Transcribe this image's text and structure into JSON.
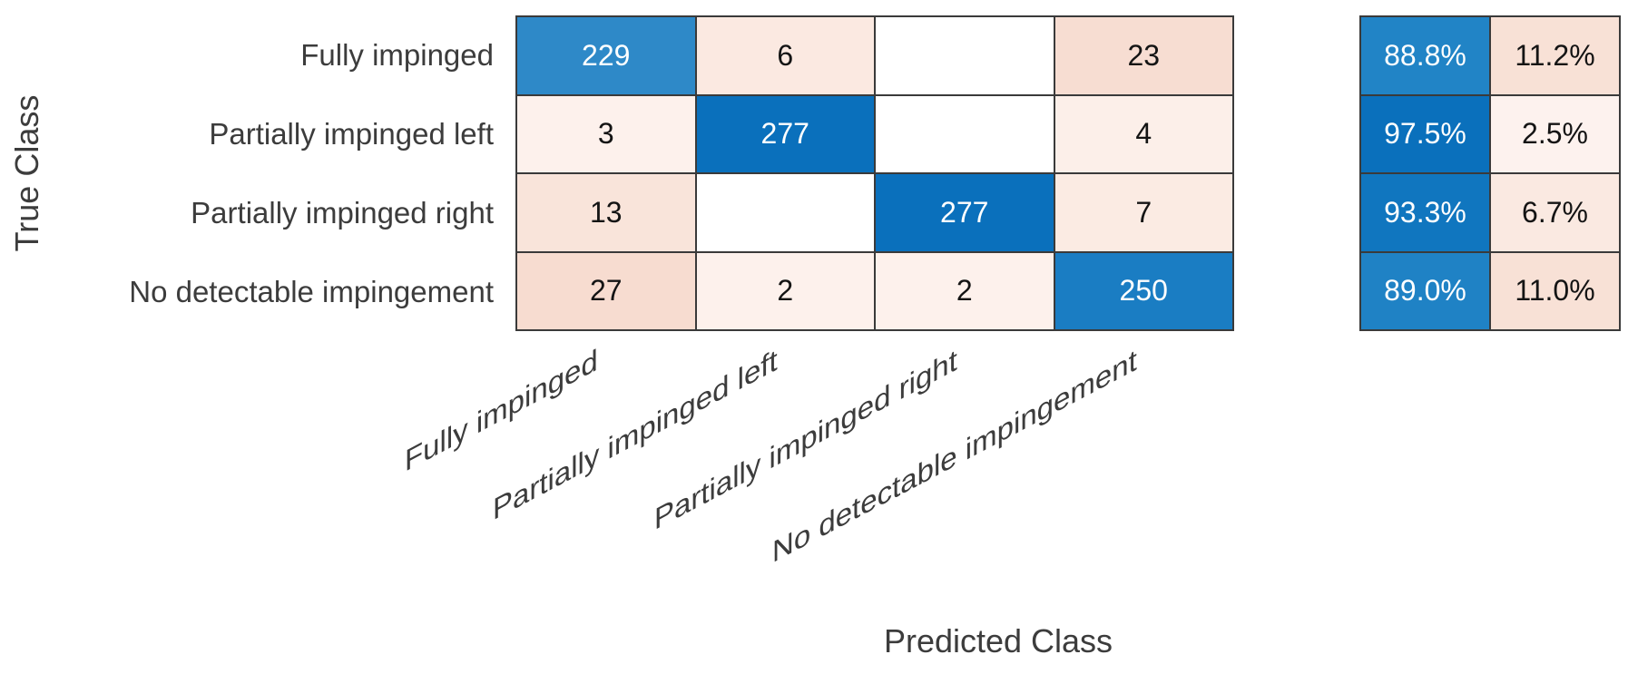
{
  "chart_data": {
    "type": "heatmap",
    "subtype": "confusion-matrix",
    "title": "",
    "xlabel": "Predicted Class",
    "ylabel": "True Class",
    "classes": [
      "Fully impinged",
      "Partially impinged left",
      "Partially impinged right",
      "No detectable impingement"
    ],
    "matrix": [
      [
        229,
        6,
        null,
        23
      ],
      [
        3,
        277,
        null,
        4
      ],
      [
        13,
        null,
        277,
        7
      ],
      [
        27,
        2,
        2,
        250
      ]
    ],
    "row_summary_percent": [
      [
        "88.8%",
        "11.2%"
      ],
      [
        "97.5%",
        "2.5%"
      ],
      [
        "93.3%",
        "6.7%"
      ],
      [
        "89.0%",
        "11.0%"
      ]
    ],
    "cells": [
      [
        {
          "value": "229",
          "bg": "#2e89c8",
          "fg": "#ffffff"
        },
        {
          "value": "6",
          "bg": "#fbe9e1",
          "fg": "#141414"
        },
        {
          "value": "",
          "bg": "#ffffff",
          "fg": "#141414"
        },
        {
          "value": "23",
          "bg": "#f7ddd2",
          "fg": "#141414"
        }
      ],
      [
        {
          "value": "3",
          "bg": "#fdf1ec",
          "fg": "#141414"
        },
        {
          "value": "277",
          "bg": "#0a70bc",
          "fg": "#ffffff"
        },
        {
          "value": "",
          "bg": "#ffffff",
          "fg": "#141414"
        },
        {
          "value": "4",
          "bg": "#fcefe9",
          "fg": "#141414"
        }
      ],
      [
        {
          "value": "13",
          "bg": "#f9e4da",
          "fg": "#141414"
        },
        {
          "value": "",
          "bg": "#ffffff",
          "fg": "#141414"
        },
        {
          "value": "277",
          "bg": "#0a70bc",
          "fg": "#ffffff"
        },
        {
          "value": "7",
          "bg": "#fbebe3",
          "fg": "#141414"
        }
      ],
      [
        {
          "value": "27",
          "bg": "#f7dcd0",
          "fg": "#141414"
        },
        {
          "value": "2",
          "bg": "#fdf1ec",
          "fg": "#141414"
        },
        {
          "value": "2",
          "bg": "#fdf1ec",
          "fg": "#141414"
        },
        {
          "value": "250",
          "bg": "#1a7dc3",
          "fg": "#ffffff"
        }
      ]
    ],
    "summary_cells": [
      [
        {
          "value": "88.8%",
          "bg": "#2184c6",
          "fg": "#ffffff"
        },
        {
          "value": "11.2%",
          "bg": "#f8e1d6",
          "fg": "#141414"
        }
      ],
      [
        {
          "value": "97.5%",
          "bg": "#0a70bc",
          "fg": "#ffffff"
        },
        {
          "value": "2.5%",
          "bg": "#fdf2ee",
          "fg": "#141414"
        }
      ],
      [
        {
          "value": "93.3%",
          "bg": "#1076bf",
          "fg": "#ffffff"
        },
        {
          "value": "6.7%",
          "bg": "#fae9e1",
          "fg": "#141414"
        }
      ],
      [
        {
          "value": "89.0%",
          "bg": "#1f82c5",
          "fg": "#ffffff"
        },
        {
          "value": "11.0%",
          "bg": "#f8e1d6",
          "fg": "#141414"
        }
      ]
    ],
    "colors": {
      "grid_line": "#3a3a3a",
      "label_text": "#3c3c3c",
      "diagonal_max_blue": "#0a70bc",
      "offdiagonal_max_pink": "#f7dcd0",
      "empty_cell": "#ffffff"
    },
    "layout_hints": {
      "x_tick_rotation_deg": -28,
      "grid": "on",
      "legend": "none"
    }
  }
}
